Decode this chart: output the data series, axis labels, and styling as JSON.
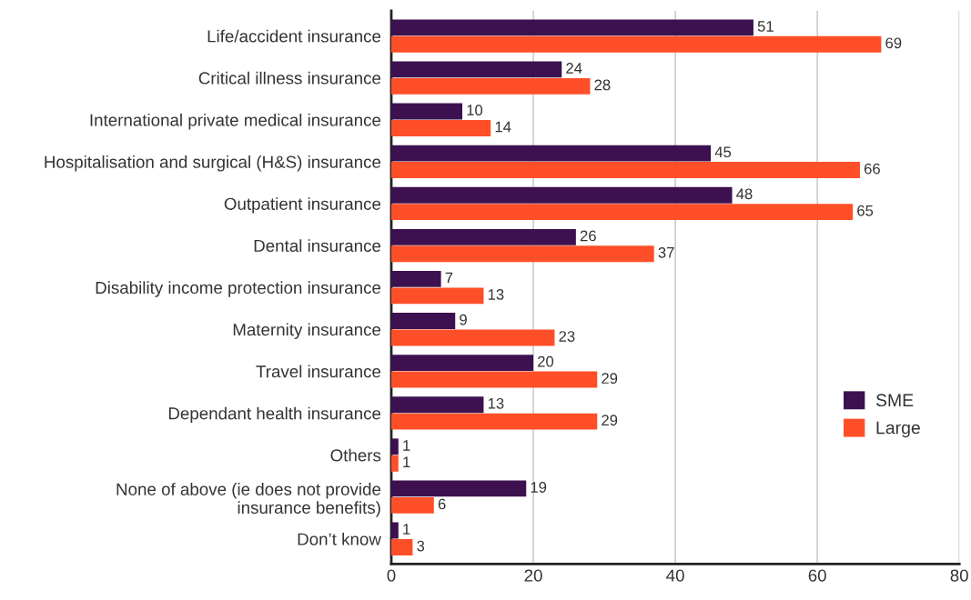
{
  "chart_data": {
    "type": "bar",
    "orientation": "horizontal",
    "categories": [
      "Life/accident insurance",
      "Critical illness insurance",
      "International private medical insurance",
      "Hospitalisation and surgical (H&S) insurance",
      "Outpatient insurance",
      "Dental insurance",
      "Disability income protection insurance",
      "Maternity insurance",
      "Travel insurance",
      "Dependant health insurance",
      "Others",
      "None of above (ie does not provide\ninsurance benefits)",
      "Don’t know"
    ],
    "series": [
      {
        "name": "SME",
        "color": "#3d1150",
        "values": [
          51,
          24,
          10,
          45,
          48,
          26,
          7,
          9,
          20,
          13,
          1,
          19,
          1
        ]
      },
      {
        "name": "Large",
        "color": "#ff4f28",
        "values": [
          69,
          28,
          14,
          66,
          65,
          37,
          13,
          23,
          29,
          29,
          1,
          6,
          3
        ]
      }
    ],
    "xlim": [
      0,
      80
    ],
    "xticks": [
      0,
      20,
      40,
      60,
      80
    ],
    "grid": "x",
    "legend": "bottom right",
    "data_labels": true
  }
}
